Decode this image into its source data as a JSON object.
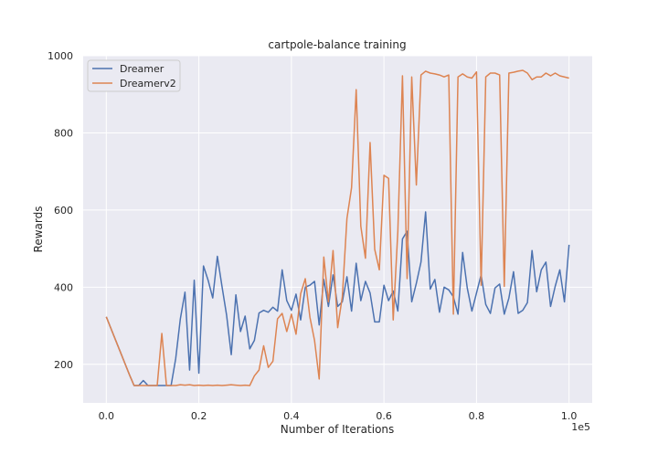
{
  "chart_data": {
    "type": "line",
    "title": "cartpole-balance training",
    "xlabel": "Number of Iterations",
    "ylabel": "Rewards",
    "x_offset_label": "1e5",
    "xlim": [
      -0.05,
      1.05
    ],
    "ylim": [
      100,
      1000
    ],
    "x_ticks": [
      0.0,
      0.2,
      0.4,
      0.6,
      0.8,
      1.0
    ],
    "x_tick_labels": [
      "0.0",
      "0.2",
      "0.4",
      "0.6",
      "0.8",
      "1.0"
    ],
    "y_ticks": [
      200,
      400,
      600,
      800,
      1000
    ],
    "y_tick_labels": [
      "200",
      "400",
      "600",
      "800",
      "1000"
    ],
    "grid": true,
    "legend_position": "upper-left",
    "x": [
      0.0,
      0.01,
      0.02,
      0.03,
      0.04,
      0.05,
      0.06,
      0.07,
      0.08,
      0.09,
      0.1,
      0.11,
      0.12,
      0.13,
      0.14,
      0.15,
      0.16,
      0.17,
      0.18,
      0.19,
      0.2,
      0.21,
      0.22,
      0.23,
      0.24,
      0.25,
      0.26,
      0.27,
      0.28,
      0.29,
      0.3,
      0.31,
      0.32,
      0.33,
      0.34,
      0.35,
      0.36,
      0.37,
      0.38,
      0.39,
      0.4,
      0.41,
      0.42,
      0.43,
      0.44,
      0.45,
      0.46,
      0.47,
      0.48,
      0.49,
      0.5,
      0.51,
      0.52,
      0.53,
      0.54,
      0.55,
      0.56,
      0.57,
      0.58,
      0.59,
      0.6,
      0.61,
      0.62,
      0.63,
      0.64,
      0.65,
      0.66,
      0.67,
      0.68,
      0.69,
      0.7,
      0.71,
      0.72,
      0.73,
      0.74,
      0.75,
      0.76,
      0.77,
      0.78,
      0.79,
      0.8,
      0.81,
      0.82,
      0.83,
      0.84,
      0.85,
      0.86,
      0.87,
      0.88,
      0.89,
      0.9,
      0.91,
      0.92,
      0.93,
      0.94,
      0.95,
      0.96,
      0.97,
      0.98,
      0.99,
      1.0
    ],
    "series": [
      {
        "name": "Dreamer",
        "color": "#4c72b0",
        "values": [
          323,
          293,
          263,
          233,
          203,
          173,
          145,
          145,
          158,
          145,
          145,
          145,
          145,
          145,
          145,
          215,
          318,
          387,
          185,
          418,
          177,
          455,
          418,
          372,
          480,
          402,
          327,
          225,
          380,
          285,
          325,
          240,
          262,
          333,
          340,
          335,
          348,
          338,
          445,
          365,
          340,
          382,
          315,
          400,
          405,
          415,
          302,
          420,
          350,
          432,
          350,
          362,
          427,
          338,
          462,
          365,
          415,
          385,
          310,
          310,
          405,
          365,
          390,
          338,
          525,
          545,
          362,
          410,
          465,
          595,
          395,
          420,
          335,
          400,
          393,
          375,
          330,
          490,
          398,
          338,
          385,
          432,
          355,
          332,
          398,
          408,
          330,
          372,
          440,
          332,
          340,
          360,
          495,
          388,
          445,
          465,
          350,
          402,
          445,
          362,
          510
        ]
      },
      {
        "name": "Dreamerv2",
        "color": "#dd8452",
        "values": [
          323,
          293,
          263,
          233,
          203,
          173,
          145,
          145,
          145,
          145,
          145,
          145,
          280,
          145,
          145,
          145,
          147,
          146,
          147,
          145,
          146,
          145,
          146,
          145,
          146,
          145,
          146,
          147,
          146,
          145,
          146,
          145,
          170,
          185,
          248,
          192,
          208,
          318,
          332,
          285,
          330,
          278,
          383,
          422,
          322,
          262,
          162,
          478,
          362,
          495,
          295,
          375,
          578,
          658,
          912,
          558,
          475,
          775,
          498,
          445,
          690,
          682,
          315,
          545,
          948,
          422,
          945,
          665,
          950,
          960,
          955,
          953,
          950,
          945,
          950,
          330,
          945,
          953,
          945,
          942,
          958,
          405,
          945,
          955,
          955,
          950,
          402,
          955,
          957,
          960,
          962,
          955,
          938,
          945,
          945,
          955,
          948,
          955,
          948,
          945,
          942
        ]
      }
    ]
  }
}
